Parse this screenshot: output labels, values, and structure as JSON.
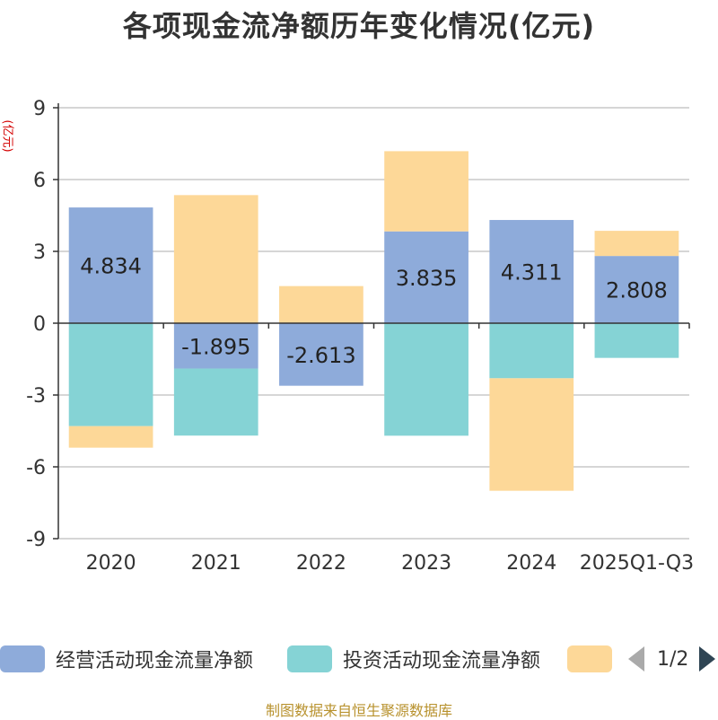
{
  "title": "各项现金流净额历年变化情况(亿元)",
  "unit_label": "(亿元)",
  "source": "制图数据来自恒生聚源数据库",
  "legend": {
    "items": [
      {
        "label": "经营活动现金流量净额",
        "color": "#8eabda"
      },
      {
        "label": "投资活动现金流量净额",
        "color": "#85d3d5"
      },
      {
        "label": "",
        "color": "#fdd898"
      }
    ],
    "page": "1/2"
  },
  "chart_data": {
    "type": "bar",
    "stacked": true,
    "categories": [
      "2020",
      "2021",
      "2022",
      "2023",
      "2024",
      "2025Q1-Q3"
    ],
    "ylim": [
      -9,
      9
    ],
    "yticks": [
      9,
      6,
      3,
      0,
      -3,
      -6,
      -9
    ],
    "grid": true,
    "legend_position": "bottom",
    "series": [
      {
        "name": "经营活动现金流量净额",
        "color": "#8eabda",
        "values": [
          4.834,
          -1.895,
          -2.613,
          3.835,
          4.311,
          2.808
        ],
        "labeled": true
      },
      {
        "name": "投资活动现金流量净额",
        "color": "#85d3d5",
        "values": [
          -4.3,
          -2.8,
          0.0,
          -4.7,
          -2.3,
          -1.45
        ]
      },
      {
        "name": "",
        "color": "#fdd898",
        "values": [
          -0.9,
          5.35,
          1.55,
          3.35,
          -4.7,
          1.05
        ]
      }
    ]
  }
}
